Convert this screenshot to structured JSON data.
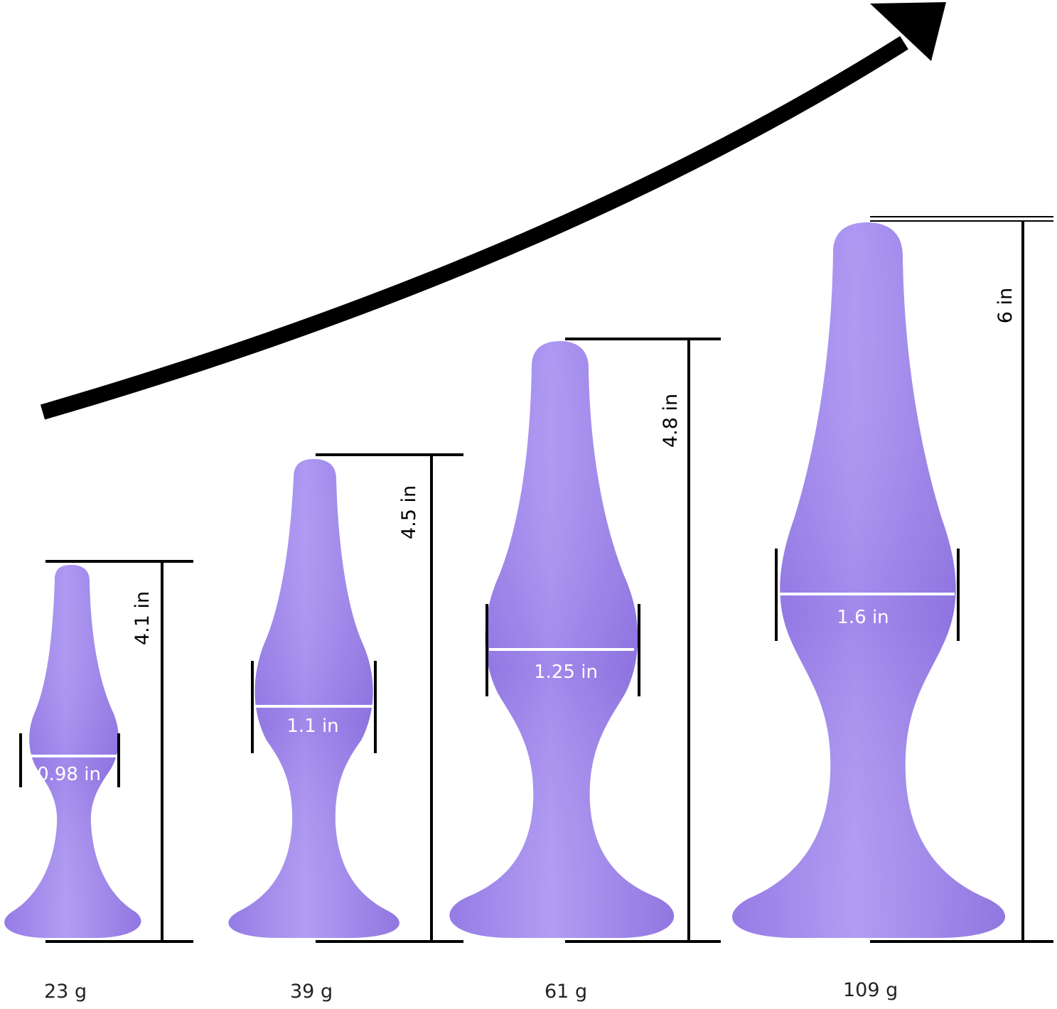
{
  "colors": {
    "body_light": "#ad98f2",
    "body_mid": "#9a82ec",
    "body_dark": "#7f62d6",
    "ink": "#000000",
    "measure_line": "#ffffff"
  },
  "arrow_icon": "growth-arrow-icon",
  "items": [
    {
      "height_label": "4.1 in",
      "width_label": "0.98 in",
      "weight_label": "23 g"
    },
    {
      "height_label": "4.5 in",
      "width_label": "1.1 in",
      "weight_label": "39 g"
    },
    {
      "height_label": "4.8 in",
      "width_label": "1.25 in",
      "weight_label": "61 g"
    },
    {
      "height_label": "6 in",
      "width_label": "1.6 in",
      "weight_label": "109 g"
    }
  ]
}
